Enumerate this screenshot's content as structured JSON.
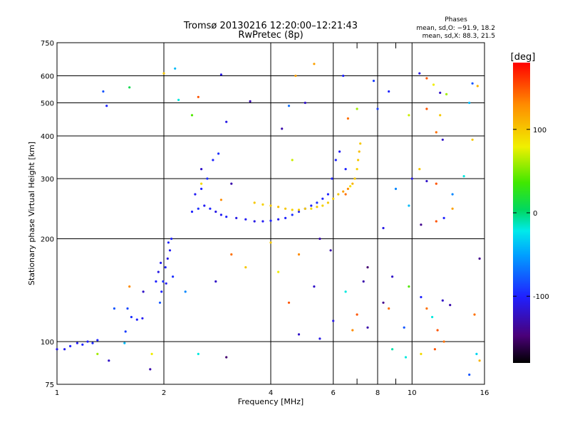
{
  "chart_data": {
    "type": "scatter",
    "title": "Tromsø 20130216 12:20:00–12:21:43",
    "subtitle": "RwPretec (8p)",
    "stats": {
      "heading": "Phases",
      "line1": "mean, sd,O: −91.9, 18.2",
      "line2": "mean, sd,X:  88.3, 21.5"
    },
    "xlabel": "Frequency [MHz]",
    "ylabel": "Stationary phase Virtual Height [km]",
    "x_scale": "log",
    "y_scale": "log",
    "xlim": [
      1,
      16
    ],
    "ylim": [
      75,
      750
    ],
    "x_ticks": [
      1,
      2,
      4,
      6,
      8,
      10,
      16
    ],
    "x_minor_ticks": [
      7,
      9
    ],
    "y_ticks": [
      75,
      100,
      200,
      300,
      400,
      500,
      600,
      750
    ],
    "grid": true,
    "colorbar": {
      "label": "[deg]",
      "range": [
        -180,
        180
      ],
      "ticks": [
        100,
        0,
        -100
      ]
    },
    "series": [
      {
        "trace": [
          [
            1.0,
            95,
            -110
          ],
          [
            1.05,
            95,
            -105
          ],
          [
            1.09,
            97,
            -100
          ],
          [
            1.14,
            99,
            -105
          ],
          [
            1.18,
            98,
            -100
          ],
          [
            1.22,
            100,
            -102
          ],
          [
            1.26,
            99,
            -98
          ],
          [
            1.3,
            101,
            -100
          ],
          [
            1.56,
            107,
            -90
          ],
          [
            1.62,
            118,
            -95
          ],
          [
            1.68,
            116,
            -100
          ],
          [
            1.74,
            117,
            -105
          ],
          [
            1.45,
            125,
            -80
          ],
          [
            1.58,
            125,
            -85
          ],
          [
            1.9,
            150,
            -100
          ],
          [
            1.93,
            160,
            -110
          ],
          [
            1.96,
            170,
            -105
          ],
          [
            1.99,
            150,
            -95
          ],
          [
            2.02,
            165,
            -100
          ],
          [
            2.05,
            175,
            -110
          ],
          [
            2.08,
            185,
            -105
          ],
          [
            2.1,
            200,
            -100
          ],
          [
            2.12,
            155,
            -95
          ],
          [
            1.97,
            140,
            -100
          ],
          [
            2.03,
            148,
            -105
          ],
          [
            2.06,
            195,
            -100
          ],
          [
            2.4,
            240,
            -100
          ],
          [
            2.5,
            245,
            -95
          ],
          [
            2.6,
            250,
            -105
          ],
          [
            2.7,
            245,
            -100
          ],
          [
            2.8,
            240,
            -110
          ],
          [
            2.9,
            235,
            -105
          ],
          [
            3.0,
            232,
            -100
          ],
          [
            3.2,
            230,
            -110
          ],
          [
            3.4,
            228,
            -105
          ],
          [
            3.6,
            225,
            -110
          ],
          [
            3.8,
            225,
            -105
          ],
          [
            4.0,
            226,
            -100
          ],
          [
            4.2,
            228,
            -105
          ],
          [
            4.4,
            230,
            -100
          ],
          [
            4.6,
            235,
            -95
          ],
          [
            4.8,
            240,
            -100
          ],
          [
            5.0,
            245,
            -90
          ],
          [
            5.2,
            250,
            -100
          ],
          [
            5.4,
            255,
            -95
          ],
          [
            5.6,
            262,
            -100
          ],
          [
            5.8,
            270,
            -100
          ],
          [
            2.45,
            270,
            -105
          ],
          [
            2.55,
            280,
            -100
          ],
          [
            2.65,
            300,
            -95
          ],
          [
            2.75,
            340,
            -100
          ],
          [
            2.85,
            355,
            -95
          ],
          [
            5.95,
            300,
            -100
          ],
          [
            6.1,
            340,
            -100
          ],
          [
            6.25,
            360,
            -105
          ],
          [
            6.5,
            320,
            -100
          ]
        ]
      },
      {
        "trace": [
          [
            3.6,
            255,
            100
          ],
          [
            3.8,
            252,
            95
          ],
          [
            4.0,
            250,
            100
          ],
          [
            4.2,
            248,
            105
          ],
          [
            4.4,
            245,
            100
          ],
          [
            4.6,
            243,
            95
          ],
          [
            4.8,
            243,
            100
          ],
          [
            5.0,
            245,
            100
          ],
          [
            5.2,
            245,
            90
          ],
          [
            5.4,
            248,
            100
          ],
          [
            5.6,
            250,
            95
          ],
          [
            5.8,
            255,
            100
          ],
          [
            6.0,
            262,
            95
          ],
          [
            6.2,
            270,
            100
          ],
          [
            6.4,
            275,
            120
          ],
          [
            6.6,
            280,
            130
          ],
          [
            6.8,
            290,
            110
          ],
          [
            6.9,
            300,
            100
          ],
          [
            7.0,
            320,
            95
          ],
          [
            7.05,
            340,
            100
          ],
          [
            7.1,
            360,
            105
          ],
          [
            7.15,
            380,
            100
          ],
          [
            6.5,
            270,
            140
          ],
          [
            6.7,
            285,
            85
          ]
        ]
      },
      {
        "trace": [
          [
            1.35,
            540,
            -80
          ],
          [
            1.38,
            490,
            -100
          ],
          [
            1.6,
            555,
            10
          ],
          [
            2.0,
            610,
            100
          ],
          [
            2.15,
            630,
            -40
          ],
          [
            2.9,
            605,
            -110
          ],
          [
            4.7,
            600,
            120
          ],
          [
            5.3,
            650,
            120
          ],
          [
            6.4,
            600,
            -100
          ],
          [
            7.8,
            580,
            -90
          ],
          [
            8.6,
            540,
            -100
          ],
          [
            10.5,
            610,
            -110
          ],
          [
            11.0,
            590,
            150
          ],
          [
            11.5,
            565,
            80
          ],
          [
            12.0,
            535,
            -120
          ],
          [
            12.5,
            530,
            60
          ],
          [
            14.8,
            570,
            -80
          ],
          [
            15.3,
            560,
            110
          ],
          [
            2.2,
            510,
            -20
          ],
          [
            2.5,
            520,
            150
          ],
          [
            3.5,
            505,
            -130
          ],
          [
            4.5,
            490,
            -70
          ],
          [
            5.0,
            500,
            -120
          ],
          [
            6.6,
            450,
            140
          ],
          [
            7.0,
            480,
            60
          ],
          [
            8.0,
            480,
            -90
          ],
          [
            9.8,
            460,
            70
          ],
          [
            11.0,
            480,
            150
          ],
          [
            12.0,
            460,
            100
          ],
          [
            14.5,
            500,
            -40
          ],
          [
            3.0,
            440,
            -110
          ],
          [
            2.4,
            460,
            40
          ],
          [
            11.7,
            410,
            140
          ],
          [
            12.2,
            390,
            -120
          ],
          [
            14.8,
            390,
            100
          ],
          [
            2.55,
            320,
            -120
          ],
          [
            2.55,
            290,
            90
          ],
          [
            3.1,
            290,
            -130
          ],
          [
            2.9,
            260,
            130
          ],
          [
            9.0,
            280,
            -60
          ],
          [
            10.0,
            300,
            -110
          ],
          [
            10.5,
            320,
            100
          ],
          [
            11.0,
            295,
            -120
          ],
          [
            11.7,
            290,
            150
          ],
          [
            13.0,
            270,
            -60
          ],
          [
            14.0,
            305,
            -20
          ],
          [
            13.0,
            245,
            120
          ],
          [
            12.3,
            230,
            -100
          ],
          [
            11.7,
            225,
            150
          ],
          [
            10.6,
            220,
            -140
          ],
          [
            9.8,
            250,
            -40
          ],
          [
            8.3,
            215,
            -110
          ],
          [
            5.5,
            200,
            -130
          ],
          [
            5.9,
            185,
            -130
          ],
          [
            4.6,
            340,
            70
          ],
          [
            4.3,
            420,
            -130
          ],
          [
            4.0,
            195,
            100
          ],
          [
            1.6,
            145,
            130
          ],
          [
            1.75,
            140,
            -120
          ],
          [
            1.95,
            130,
            -80
          ],
          [
            2.3,
            140,
            -60
          ],
          [
            2.8,
            150,
            -120
          ],
          [
            3.1,
            180,
            140
          ],
          [
            3.4,
            165,
            100
          ],
          [
            4.5,
            130,
            150
          ],
          [
            5.3,
            145,
            -120
          ],
          [
            6.0,
            115,
            -110
          ],
          [
            6.5,
            140,
            -20
          ],
          [
            7.0,
            120,
            150
          ],
          [
            7.5,
            110,
            -130
          ],
          [
            8.3,
            130,
            -140
          ],
          [
            8.6,
            125,
            140
          ],
          [
            9.5,
            110,
            -80
          ],
          [
            9.8,
            145,
            40
          ],
          [
            10.6,
            135,
            -100
          ],
          [
            11.0,
            125,
            140
          ],
          [
            11.4,
            118,
            -20
          ],
          [
            11.8,
            108,
            150
          ],
          [
            12.2,
            132,
            -120
          ],
          [
            12.8,
            128,
            -130
          ],
          [
            15.0,
            120,
            140
          ],
          [
            15.5,
            175,
            -140
          ],
          [
            4.2,
            160,
            80
          ],
          [
            4.8,
            180,
            130
          ],
          [
            7.3,
            150,
            -130
          ],
          [
            7.5,
            165,
            -150
          ],
          [
            8.8,
            155,
            -120
          ],
          [
            1.3,
            92,
            60
          ],
          [
            1.4,
            88,
            -120
          ],
          [
            1.55,
            99,
            -40
          ],
          [
            1.85,
            92,
            80
          ],
          [
            2.5,
            92,
            -20
          ],
          [
            3.0,
            90,
            -150
          ],
          [
            4.8,
            105,
            -120
          ],
          [
            5.5,
            102,
            -110
          ],
          [
            6.8,
            108,
            130
          ],
          [
            8.8,
            95,
            -10
          ],
          [
            9.6,
            90,
            -20
          ],
          [
            10.6,
            92,
            90
          ],
          [
            12.3,
            100,
            140
          ],
          [
            14.5,
            80,
            -80
          ],
          [
            15.2,
            92,
            -30
          ],
          [
            15.5,
            88,
            110
          ],
          [
            1.83,
            83,
            -130
          ],
          [
            11.6,
            95,
            150
          ]
        ]
      }
    ]
  }
}
